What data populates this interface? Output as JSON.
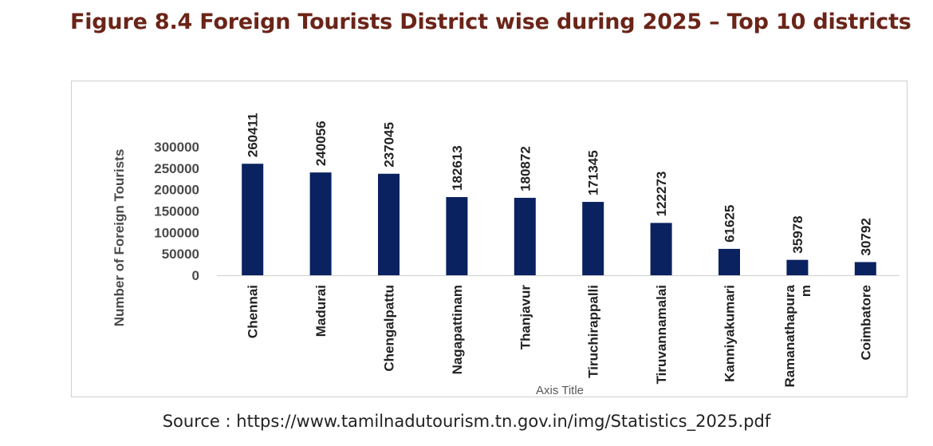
{
  "figure_title": "Figure 8.4  Foreign Tourists District wise during 2025 – Top 10 districts",
  "source_text": "Source : https://www.tamilnadutourism.tn.gov.in/img/Statistics_2025.pdf",
  "colors": {
    "bar": "#0a2260",
    "title": "#6b2418",
    "axis_text": "#4a4a4a",
    "label_text": "#222222"
  },
  "chart_data": {
    "type": "bar",
    "title": "",
    "categories": [
      "Chennai",
      "Madurai",
      "Chengalpattu",
      "Nagapattinam",
      "Thanjavur",
      "Tiruchirappalli",
      "Tiruvannamalai",
      "Kanniyakumari",
      "Ramanathapura m",
      "Coimbatore"
    ],
    "category_lines": [
      [
        "Chennai"
      ],
      [
        "Madurai"
      ],
      [
        "Chengalpattu"
      ],
      [
        "Nagapattinam"
      ],
      [
        "Thanjavur"
      ],
      [
        "Tiruchirappalli"
      ],
      [
        "Tiruvannamalai"
      ],
      [
        "Kanniyakumari"
      ],
      [
        "Ramanathapura",
        "m"
      ],
      [
        "Coimbatore"
      ]
    ],
    "values": [
      260411,
      240056,
      237045,
      182613,
      180872,
      171345,
      122273,
      61625,
      35978,
      30792
    ],
    "data_labels": [
      "260411",
      "240056",
      "237045",
      "182613",
      "180872",
      "171345",
      "122273",
      "61625",
      "35978",
      "30792"
    ],
    "xlabel": "Axis Title",
    "ylabel": "Number of Foreign Tourists",
    "ylim": [
      0,
      300000
    ],
    "yticks": [
      "0",
      "50000",
      "100000",
      "150000",
      "200000",
      "250000",
      "300000"
    ],
    "grid": false,
    "legend": "none"
  }
}
